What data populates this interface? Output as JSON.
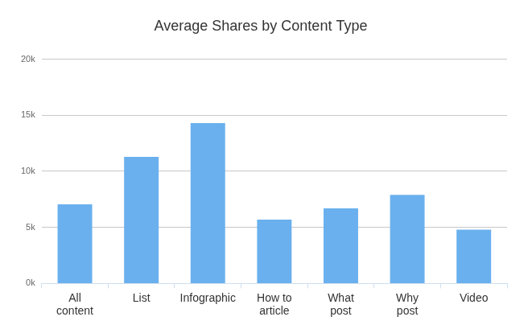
{
  "chart_data": {
    "type": "bar",
    "title": "Average Shares by Content Type",
    "categories": [
      "All content",
      "List",
      "Infographic",
      "How to article",
      "What post",
      "Why post",
      "Video"
    ],
    "values": [
      7050,
      11300,
      14300,
      5700,
      6700,
      7900,
      4800
    ],
    "color": "#6ab0ee",
    "ylim": [
      0,
      20000
    ],
    "yticks": [
      {
        "value": 0,
        "label": "0k"
      },
      {
        "value": 5000,
        "label": "5k"
      },
      {
        "value": 10000,
        "label": "10k"
      },
      {
        "value": 15000,
        "label": "15k"
      },
      {
        "value": 20000,
        "label": "20k"
      }
    ],
    "grid": true
  }
}
